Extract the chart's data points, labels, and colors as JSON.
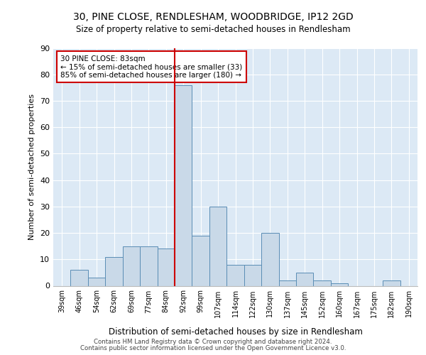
{
  "title1": "30, PINE CLOSE, RENDLESHAM, WOODBRIDGE, IP12 2GD",
  "title2": "Size of property relative to semi-detached houses in Rendlesham",
  "xlabel": "Distribution of semi-detached houses by size in Rendlesham",
  "ylabel": "Number of semi-detached properties",
  "categories": [
    "39sqm",
    "46sqm",
    "54sqm",
    "62sqm",
    "69sqm",
    "77sqm",
    "84sqm",
    "92sqm",
    "99sqm",
    "107sqm",
    "114sqm",
    "122sqm",
    "130sqm",
    "137sqm",
    "145sqm",
    "152sqm",
    "160sqm",
    "167sqm",
    "175sqm",
    "182sqm",
    "190sqm"
  ],
  "values": [
    0,
    6,
    3,
    11,
    15,
    15,
    14,
    76,
    19,
    30,
    8,
    8,
    20,
    2,
    5,
    2,
    1,
    0,
    0,
    2,
    0
  ],
  "bar_color": "#c9d9e8",
  "bar_edge_color": "#5a8db5",
  "vline_x_index": 6.5,
  "vline_color": "#cc0000",
  "annotation_text": "30 PINE CLOSE: 83sqm\n← 15% of semi-detached houses are smaller (33)\n85% of semi-detached houses are larger (180) →",
  "annotation_box_color": "#ffffff",
  "annotation_box_edge_color": "#cc0000",
  "ylim": [
    0,
    90
  ],
  "yticks": [
    0,
    10,
    20,
    30,
    40,
    50,
    60,
    70,
    80,
    90
  ],
  "background_color": "#dce9f5",
  "footer1": "Contains HM Land Registry data © Crown copyright and database right 2024.",
  "footer2": "Contains public sector information licensed under the Open Government Licence v3.0."
}
